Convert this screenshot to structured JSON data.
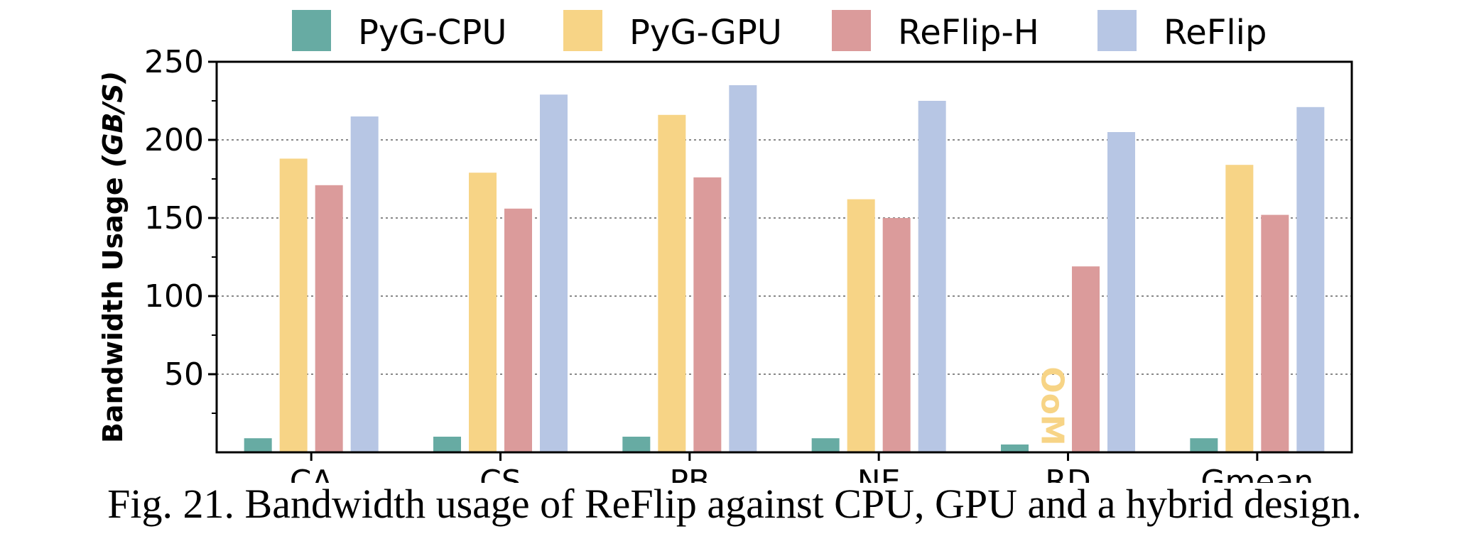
{
  "chart_data": {
    "type": "bar",
    "categories": [
      "CA",
      "CS",
      "PB",
      "NE",
      "RD",
      "Gmean"
    ],
    "series": [
      {
        "name": "PyG-CPU",
        "color": "#67ABA3",
        "values": [
          9,
          10,
          10,
          9,
          5,
          9
        ]
      },
      {
        "name": "PyG-GPU",
        "color": "#F7D486",
        "values": [
          188,
          179,
          216,
          162,
          null,
          184
        ]
      },
      {
        "name": "ReFlip-H",
        "color": "#DB9B9B",
        "values": [
          171,
          156,
          176,
          150,
          119,
          152
        ]
      },
      {
        "name": "ReFlip",
        "color": "#B7C6E4",
        "values": [
          215,
          229,
          235,
          225,
          205,
          221
        ]
      }
    ],
    "ylabel_main": "Bandwidth Usage ",
    "ylabel_unit": "(GB/S)",
    "ylim": [
      0,
      250
    ],
    "yticks": [
      50,
      100,
      150,
      200,
      250
    ],
    "grid": true,
    "legend_position": "top",
    "annotations": [
      {
        "text": "OoM",
        "category": "RD",
        "series": "PyG-GPU",
        "color": "#F7D486"
      }
    ]
  },
  "caption": "Fig. 21.  Bandwidth usage of ReFlip against CPU, GPU and a hybrid design."
}
